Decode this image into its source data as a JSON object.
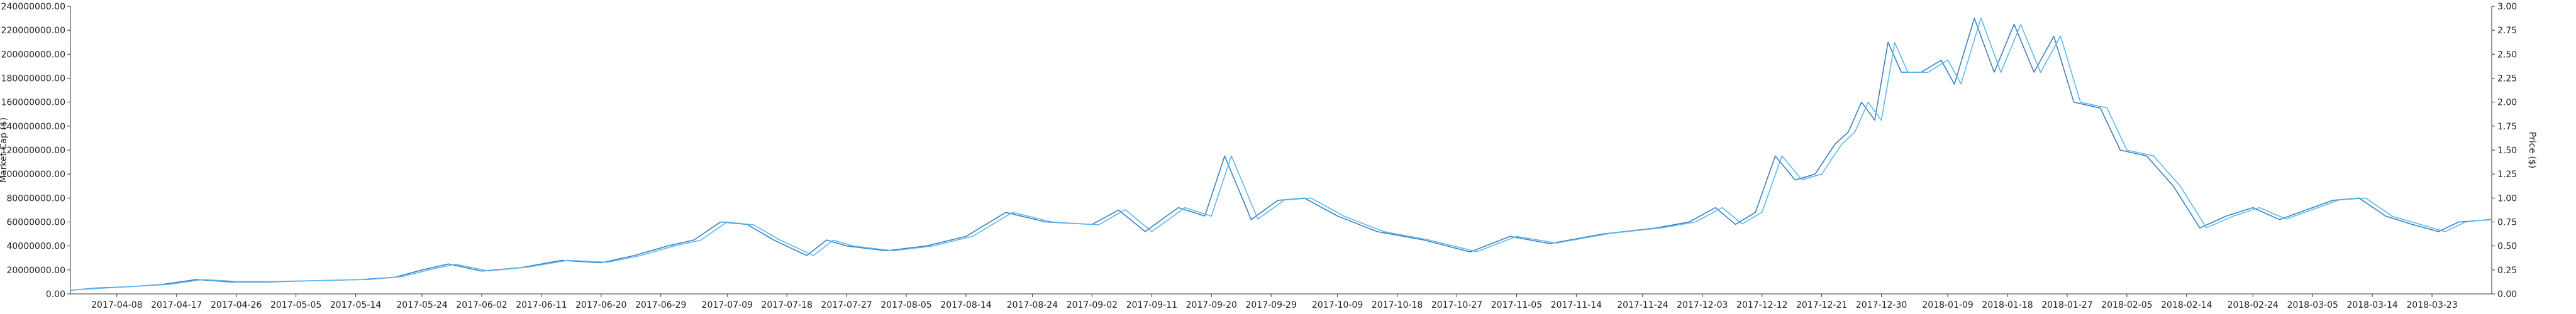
{
  "chart_data": {
    "type": "line",
    "title": "",
    "xlabel": "",
    "ylabel_left": "Market Cap ($)",
    "ylabel_right": "Price ($)",
    "grid": false,
    "legend": "none",
    "colors": {
      "series_a": "#3a7fc1",
      "series_b": "#5fb7f0",
      "axis": "#333333",
      "text": "#222222"
    },
    "left_axis": {
      "ylim": [
        0,
        240000000
      ],
      "ticks": [
        "0.00",
        "20000000.00",
        "40000000.00",
        "60000000.00",
        "80000000.00",
        "100000000.00",
        "120000000.00",
        "140000000.00",
        "160000000.00",
        "180000000.00",
        "200000000.00",
        "220000000.00",
        "240000000.00"
      ],
      "tick_values": [
        0,
        20000000,
        40000000,
        60000000,
        80000000,
        100000000,
        120000000,
        140000000,
        160000000,
        180000000,
        200000000,
        220000000,
        240000000
      ]
    },
    "right_axis": {
      "ylim": [
        0,
        3.0
      ],
      "ticks": [
        "0.00",
        "0.25",
        "0.50",
        "0.75",
        "1.00",
        "1.25",
        "1.50",
        "1.75",
        "2.00",
        "2.25",
        "2.50",
        "2.75",
        "3.00"
      ],
      "tick_values": [
        0,
        0.25,
        0.5,
        0.75,
        1.0,
        1.25,
        1.5,
        1.75,
        2.0,
        2.25,
        2.5,
        2.75,
        3.0
      ]
    },
    "x_axis": {
      "range": [
        "2017-04-01",
        "2018-04-01"
      ],
      "ticks": [
        "2017-04-08",
        "2017-04-17",
        "2017-04-26",
        "2017-05-05",
        "2017-05-14",
        "2017-05-24",
        "2017-06-02",
        "2017-06-11",
        "2017-06-20",
        "2017-06-29",
        "2017-07-09",
        "2017-07-18",
        "2017-07-27",
        "2017-08-05",
        "2017-08-14",
        "2017-08-24",
        "2017-09-02",
        "2017-09-11",
        "2017-09-20",
        "2017-09-29",
        "2017-10-09",
        "2017-10-18",
        "2017-10-27",
        "2017-11-05",
        "2017-11-14",
        "2017-11-24",
        "2017-12-03",
        "2017-12-12",
        "2017-12-21",
        "2017-12-30",
        "2018-01-09",
        "2018-01-18",
        "2018-01-27",
        "2018-02-05",
        "2018-02-14",
        "2018-02-24",
        "2018-03-05",
        "2018-03-14",
        "2018-03-23"
      ]
    },
    "series": [
      {
        "axis": "left",
        "points": [
          [
            "2017-04-01",
            3000000
          ],
          [
            "2017-04-05",
            5000000
          ],
          [
            "2017-04-10",
            6000000
          ],
          [
            "2017-04-15",
            8000000
          ],
          [
            "2017-04-20",
            12000000
          ],
          [
            "2017-04-25",
            10000000
          ],
          [
            "2017-05-01",
            10000000
          ],
          [
            "2017-05-08",
            11000000
          ],
          [
            "2017-05-15",
            12000000
          ],
          [
            "2017-05-20",
            14000000
          ],
          [
            "2017-05-24",
            20000000
          ],
          [
            "2017-05-28",
            25000000
          ],
          [
            "2017-06-02",
            19000000
          ],
          [
            "2017-06-08",
            22000000
          ],
          [
            "2017-06-14",
            28000000
          ],
          [
            "2017-06-20",
            26000000
          ],
          [
            "2017-06-25",
            32000000
          ],
          [
            "2017-06-30",
            40000000
          ],
          [
            "2017-07-04",
            45000000
          ],
          [
            "2017-07-08",
            60000000
          ],
          [
            "2017-07-12",
            58000000
          ],
          [
            "2017-07-16",
            45000000
          ],
          [
            "2017-07-21",
            32000000
          ],
          [
            "2017-07-24",
            45000000
          ],
          [
            "2017-07-27",
            40000000
          ],
          [
            "2017-08-02",
            36000000
          ],
          [
            "2017-08-08",
            40000000
          ],
          [
            "2017-08-14",
            48000000
          ],
          [
            "2017-08-20",
            68000000
          ],
          [
            "2017-08-26",
            60000000
          ],
          [
            "2017-09-02",
            58000000
          ],
          [
            "2017-09-06",
            70000000
          ],
          [
            "2017-09-10",
            52000000
          ],
          [
            "2017-09-15",
            72000000
          ],
          [
            "2017-09-19",
            65000000
          ],
          [
            "2017-09-22",
            115000000
          ],
          [
            "2017-09-26",
            62000000
          ],
          [
            "2017-09-30",
            78000000
          ],
          [
            "2017-10-04",
            80000000
          ],
          [
            "2017-10-09",
            65000000
          ],
          [
            "2017-10-15",
            52000000
          ],
          [
            "2017-10-22",
            45000000
          ],
          [
            "2017-10-29",
            35000000
          ],
          [
            "2017-11-04",
            48000000
          ],
          [
            "2017-11-10",
            42000000
          ],
          [
            "2017-11-18",
            50000000
          ],
          [
            "2017-11-26",
            55000000
          ],
          [
            "2017-12-01",
            60000000
          ],
          [
            "2017-12-05",
            72000000
          ],
          [
            "2017-12-08",
            58000000
          ],
          [
            "2017-12-11",
            68000000
          ],
          [
            "2017-12-14",
            115000000
          ],
          [
            "2017-12-17",
            95000000
          ],
          [
            "2017-12-20",
            100000000
          ],
          [
            "2017-12-23",
            125000000
          ],
          [
            "2017-12-25",
            135000000
          ],
          [
            "2017-12-27",
            160000000
          ],
          [
            "2017-12-29",
            145000000
          ],
          [
            "2017-12-31",
            210000000
          ],
          [
            "2018-01-02",
            185000000
          ],
          [
            "2018-01-05",
            185000000
          ],
          [
            "2018-01-08",
            195000000
          ],
          [
            "2018-01-10",
            175000000
          ],
          [
            "2018-01-13",
            230000000
          ],
          [
            "2018-01-16",
            185000000
          ],
          [
            "2018-01-19",
            225000000
          ],
          [
            "2018-01-22",
            185000000
          ],
          [
            "2018-01-25",
            215000000
          ],
          [
            "2018-01-28",
            160000000
          ],
          [
            "2018-02-01",
            155000000
          ],
          [
            "2018-02-04",
            120000000
          ],
          [
            "2018-02-08",
            115000000
          ],
          [
            "2018-02-12",
            90000000
          ],
          [
            "2018-02-16",
            55000000
          ],
          [
            "2018-02-20",
            65000000
          ],
          [
            "2018-02-24",
            72000000
          ],
          [
            "2018-02-28",
            62000000
          ],
          [
            "2018-03-04",
            70000000
          ],
          [
            "2018-03-08",
            78000000
          ],
          [
            "2018-03-12",
            80000000
          ],
          [
            "2018-03-16",
            65000000
          ],
          [
            "2018-03-20",
            58000000
          ],
          [
            "2018-03-24",
            52000000
          ],
          [
            "2018-03-27",
            60000000
          ],
          [
            "2018-04-01",
            62000000
          ]
        ]
      },
      {
        "axis": "right",
        "points": [
          [
            "2017-04-01",
            0.04
          ],
          [
            "2017-04-06",
            0.06
          ],
          [
            "2017-04-11",
            0.08
          ],
          [
            "2017-04-16",
            0.1
          ],
          [
            "2017-04-21",
            0.15
          ],
          [
            "2017-04-26",
            0.13
          ],
          [
            "2017-05-02",
            0.13
          ],
          [
            "2017-05-09",
            0.14
          ],
          [
            "2017-05-16",
            0.15
          ],
          [
            "2017-05-21",
            0.18
          ],
          [
            "2017-05-25",
            0.25
          ],
          [
            "2017-05-29",
            0.31
          ],
          [
            "2017-06-03",
            0.24
          ],
          [
            "2017-06-09",
            0.28
          ],
          [
            "2017-06-15",
            0.35
          ],
          [
            "2017-06-21",
            0.33
          ],
          [
            "2017-06-26",
            0.4
          ],
          [
            "2017-07-01",
            0.5
          ],
          [
            "2017-07-05",
            0.56
          ],
          [
            "2017-07-09",
            0.75
          ],
          [
            "2017-07-13",
            0.72
          ],
          [
            "2017-07-17",
            0.56
          ],
          [
            "2017-07-22",
            0.4
          ],
          [
            "2017-07-25",
            0.56
          ],
          [
            "2017-07-28",
            0.5
          ],
          [
            "2017-08-03",
            0.45
          ],
          [
            "2017-08-09",
            0.5
          ],
          [
            "2017-08-15",
            0.6
          ],
          [
            "2017-08-21",
            0.85
          ],
          [
            "2017-08-27",
            0.75
          ],
          [
            "2017-09-03",
            0.72
          ],
          [
            "2017-09-07",
            0.88
          ],
          [
            "2017-09-11",
            0.65
          ],
          [
            "2017-09-16",
            0.9
          ],
          [
            "2017-09-20",
            0.81
          ],
          [
            "2017-09-23",
            1.44
          ],
          [
            "2017-09-27",
            0.78
          ],
          [
            "2017-10-01",
            0.98
          ],
          [
            "2017-10-05",
            1.0
          ],
          [
            "2017-10-10",
            0.81
          ],
          [
            "2017-10-16",
            0.65
          ],
          [
            "2017-10-23",
            0.56
          ],
          [
            "2017-10-30",
            0.44
          ],
          [
            "2017-11-05",
            0.6
          ],
          [
            "2017-11-11",
            0.53
          ],
          [
            "2017-11-19",
            0.63
          ],
          [
            "2017-11-27",
            0.69
          ],
          [
            "2017-12-02",
            0.75
          ],
          [
            "2017-12-06",
            0.9
          ],
          [
            "2017-12-09",
            0.73
          ],
          [
            "2017-12-12",
            0.85
          ],
          [
            "2017-12-15",
            1.44
          ],
          [
            "2017-12-18",
            1.19
          ],
          [
            "2017-12-21",
            1.25
          ],
          [
            "2017-12-24",
            1.56
          ],
          [
            "2017-12-26",
            1.69
          ],
          [
            "2017-12-28",
            2.0
          ],
          [
            "2017-12-30",
            1.81
          ],
          [
            "2018-01-01",
            2.62
          ],
          [
            "2018-01-03",
            2.31
          ],
          [
            "2018-01-06",
            2.31
          ],
          [
            "2018-01-09",
            2.44
          ],
          [
            "2018-01-11",
            2.19
          ],
          [
            "2018-01-14",
            2.88
          ],
          [
            "2018-01-17",
            2.31
          ],
          [
            "2018-01-20",
            2.81
          ],
          [
            "2018-01-23",
            2.31
          ],
          [
            "2018-01-26",
            2.69
          ],
          [
            "2018-01-29",
            2.0
          ],
          [
            "2018-02-02",
            1.94
          ],
          [
            "2018-02-05",
            1.5
          ],
          [
            "2018-02-09",
            1.44
          ],
          [
            "2018-02-13",
            1.13
          ],
          [
            "2018-02-17",
            0.69
          ],
          [
            "2018-02-21",
            0.81
          ],
          [
            "2018-02-25",
            0.9
          ],
          [
            "2018-03-01",
            0.78
          ],
          [
            "2018-03-05",
            0.88
          ],
          [
            "2018-03-09",
            0.98
          ],
          [
            "2018-03-13",
            1.0
          ],
          [
            "2018-03-17",
            0.81
          ],
          [
            "2018-03-21",
            0.73
          ],
          [
            "2018-03-25",
            0.65
          ],
          [
            "2018-03-28",
            0.75
          ],
          [
            "2018-04-01",
            0.78
          ]
        ]
      }
    ]
  }
}
